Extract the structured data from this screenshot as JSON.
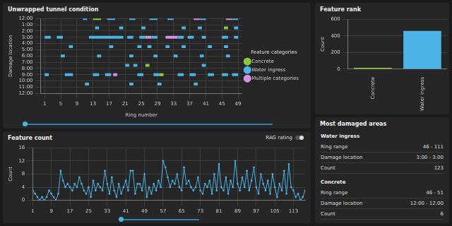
{
  "chart_data": [
    {
      "type": "scatter",
      "title": "Unwrapped tunnel condition",
      "x_label": "Ring number",
      "y_label": "Damage location",
      "legend_title": "Feature categories",
      "legend": "right",
      "grid": true,
      "xlim": [
        0,
        50
      ],
      "xticks": [
        1,
        5,
        9,
        13,
        17,
        21,
        25,
        29,
        33,
        37,
        41,
        45,
        49
      ],
      "ylim": [
        0,
        12
      ],
      "yticks": [
        {
          "value": 0,
          "label": "12:00"
        },
        {
          "value": 1,
          "label": "1:00"
        },
        {
          "value": 2,
          "label": "2:00"
        },
        {
          "value": 3,
          "label": "3:00"
        },
        {
          "value": 4,
          "label": "4:00"
        },
        {
          "value": 5,
          "label": "5:00"
        },
        {
          "value": 6,
          "label": "6:00"
        },
        {
          "value": 7,
          "label": "7:00"
        },
        {
          "value": 8,
          "label": "8:00"
        },
        {
          "value": 9,
          "label": "9:00"
        },
        {
          "value": 10,
          "label": "10:00"
        },
        {
          "value": 11,
          "label": "11:00"
        },
        {
          "value": 12,
          "label": "12:00"
        }
      ],
      "series": [
        {
          "name": "Concrete",
          "color": "#8dc63f",
          "segments": [
            {
              "x": [
                13,
                15
              ],
              "y": 0
            },
            {
              "x": [
                45.5,
                46.5
              ],
              "y": 1.5
            },
            {
              "x": [
                26,
                27
              ],
              "y": 7.5
            },
            {
              "x": [
                29.5,
                30.5
              ],
              "y": 9
            }
          ]
        },
        {
          "name": "Water ingress",
          "color": "#4cb3e6",
          "segments": [
            {
              "x": [
                10.5,
                11.5
              ],
              "y": 0
            },
            {
              "x": [
                16.5,
                18.5
              ],
              "y": 0
            },
            {
              "x": [
                22,
                23.5
              ],
              "y": 0
            },
            {
              "x": [
                27,
                29
              ],
              "y": 0
            },
            {
              "x": [
                31.5,
                33
              ],
              "y": 0
            },
            {
              "x": [
                39.5,
                41
              ],
              "y": 0
            },
            {
              "x": [
                47.5,
                49
              ],
              "y": 0
            },
            {
              "x": [
                13.5,
                14.5
              ],
              "y": 1.5
            },
            {
              "x": [
                19.5,
                20.5
              ],
              "y": 1.5
            },
            {
              "x": [
                25,
                26
              ],
              "y": 1.5
            },
            {
              "x": [
                35,
                36
              ],
              "y": 1.5
            },
            {
              "x": [
                39,
                40
              ],
              "y": 1.5
            },
            {
              "x": [
                48,
                49
              ],
              "y": 1.5
            },
            {
              "x": [
                1,
                2.5
              ],
              "y": 3
            },
            {
              "x": [
                4,
                5.5
              ],
              "y": 3
            },
            {
              "x": [
                12,
                20.5
              ],
              "y": 3
            },
            {
              "x": [
                21.5,
                23
              ],
              "y": 3
            },
            {
              "x": [
                24.5,
                26
              ],
              "y": 3
            },
            {
              "x": [
                27.5,
                29
              ],
              "y": 3
            },
            {
              "x": [
                34,
                35.5
              ],
              "y": 3
            },
            {
              "x": [
                36.5,
                38
              ],
              "y": 3
            },
            {
              "x": [
                40,
                41
              ],
              "y": 3
            },
            {
              "x": [
                45,
                46.5
              ],
              "y": 3
            },
            {
              "x": [
                48,
                49
              ],
              "y": 3
            },
            {
              "x": [
                7,
                8
              ],
              "y": 4.5
            },
            {
              "x": [
                17,
                18
              ],
              "y": 4.5
            },
            {
              "x": [
                24,
                25
              ],
              "y": 4.5
            },
            {
              "x": [
                26.5,
                27.5
              ],
              "y": 4.5
            },
            {
              "x": [
                31,
                32
              ],
              "y": 4.5
            },
            {
              "x": [
                35,
                36
              ],
              "y": 4.5
            },
            {
              "x": [
                41.5,
                42.5
              ],
              "y": 4.5
            },
            {
              "x": [
                45.5,
                46.5
              ],
              "y": 4.5
            },
            {
              "x": [
                5,
                6
              ],
              "y": 6
            },
            {
              "x": [
                14,
                15
              ],
              "y": 6
            },
            {
              "x": [
                22,
                23
              ],
              "y": 6
            },
            {
              "x": [
                28,
                29
              ],
              "y": 6
            },
            {
              "x": [
                33,
                34
              ],
              "y": 6
            },
            {
              "x": [
                39.5,
                40.5
              ],
              "y": 6
            },
            {
              "x": [
                46,
                47
              ],
              "y": 6
            },
            {
              "x": [
                21,
                22
              ],
              "y": 7.5
            },
            {
              "x": [
                23,
                24
              ],
              "y": 7.5
            },
            {
              "x": [
                40,
                41
              ],
              "y": 7.5
            },
            {
              "x": [
                1,
                2
              ],
              "y": 9
            },
            {
              "x": [
                6,
                8
              ],
              "y": 9
            },
            {
              "x": [
                13,
                14.5
              ],
              "y": 9
            },
            {
              "x": [
                16,
                17.5
              ],
              "y": 9
            },
            {
              "x": [
                24,
                25.5
              ],
              "y": 9
            },
            {
              "x": [
                28,
                29.5
              ],
              "y": 9
            },
            {
              "x": [
                34,
                35.5
              ],
              "y": 9
            },
            {
              "x": [
                37,
                38.5
              ],
              "y": 9
            },
            {
              "x": [
                41.5,
                43
              ],
              "y": 9
            },
            {
              "x": [
                45,
                46.5
              ],
              "y": 9
            },
            {
              "x": [
                47.5,
                49
              ],
              "y": 9
            },
            {
              "x": [
                11,
                12
              ],
              "y": 10.5
            },
            {
              "x": [
                22,
                23
              ],
              "y": 10.5
            },
            {
              "x": [
                29,
                30
              ],
              "y": 10.5
            },
            {
              "x": [
                38,
                39
              ],
              "y": 10.5
            }
          ]
        },
        {
          "name": "Multiple categories",
          "color": "#d88fe6",
          "segments": [
            {
              "x": [
                38,
                39.5
              ],
              "y": 0
            },
            {
              "x": [
                46,
                47.5
              ],
              "y": 0
            },
            {
              "x": [
                26,
                27.5
              ],
              "y": 3
            },
            {
              "x": [
                31,
                34
              ],
              "y": 3
            },
            {
              "x": [
                18,
                19
              ],
              "y": 9
            }
          ]
        }
      ]
    },
    {
      "type": "bar",
      "title": "Feature rank",
      "y_label": "Count",
      "grid": true,
      "categories": [
        "Concrete",
        "Water ingress"
      ],
      "values": [
        17,
        460
      ],
      "colors": [
        "#8dc63f",
        "#4cb3e6"
      ],
      "ylim": [
        0,
        600
      ],
      "yticks": [
        0,
        200,
        400,
        600
      ]
    },
    {
      "type": "line",
      "title": "Feature count",
      "toggle_label": "RAG rating",
      "y_label": "Count",
      "grid": true,
      "color": "#4cb3e6",
      "x": [
        1,
        2,
        3,
        4,
        5,
        6,
        7,
        8,
        9,
        10,
        11,
        12,
        13,
        14,
        15,
        16,
        17,
        18,
        19,
        20,
        21,
        22,
        23,
        24,
        25,
        26,
        27,
        28,
        29,
        30,
        31,
        32,
        33,
        34,
        35,
        36,
        37,
        38,
        39,
        40,
        41,
        42,
        43,
        44,
        45,
        46,
        47,
        48,
        49,
        50,
        51,
        52,
        53,
        54,
        55,
        56,
        57,
        58,
        59,
        60,
        61,
        62,
        63,
        64,
        65,
        66,
        67,
        68,
        69,
        70,
        71,
        72,
        73,
        74,
        75,
        76,
        77,
        78,
        79,
        80,
        81,
        82,
        83,
        84,
        85,
        86,
        87,
        88,
        89,
        90,
        91,
        92,
        93,
        94,
        95,
        96,
        97,
        98,
        99,
        100,
        101,
        102,
        103,
        104,
        105,
        106,
        107,
        108,
        109,
        110,
        111,
        112,
        113,
        114,
        115,
        116,
        117,
        118
      ],
      "values": [
        3,
        2,
        1,
        0,
        1,
        0,
        1,
        3,
        2,
        1,
        0,
        2,
        9,
        6,
        4,
        5,
        4,
        3,
        5,
        4,
        7,
        5,
        3,
        2,
        4,
        1,
        6,
        3,
        5,
        4,
        3,
        9,
        5,
        2,
        7,
        3,
        1,
        5,
        2,
        4,
        6,
        3,
        9,
        9,
        2,
        5,
        5,
        3,
        8,
        1,
        4,
        2,
        5,
        3,
        6,
        4,
        12,
        10,
        7,
        4,
        6,
        5,
        8,
        4,
        3,
        10,
        5,
        6,
        4,
        3,
        4,
        7,
        3,
        2,
        5,
        4,
        6,
        2,
        8,
        3,
        11,
        4,
        3,
        7,
        2,
        6,
        4,
        12,
        5,
        3,
        7,
        4,
        9,
        3,
        6,
        10,
        4,
        2,
        8,
        5,
        3,
        6,
        2,
        8,
        4,
        1,
        5,
        3,
        9,
        2,
        11,
        4,
        3,
        1,
        2,
        0,
        1,
        3
      ],
      "xlim": [
        1,
        118
      ],
      "xticks": [
        1,
        9,
        17,
        25,
        33,
        41,
        49,
        57,
        65,
        73,
        81,
        89,
        97,
        105,
        113
      ],
      "ylim": [
        0,
        16
      ],
      "yticks": [
        0,
        4,
        8,
        12,
        16
      ]
    }
  ],
  "most_damaged_areas": {
    "title": "Most damaged areas",
    "sections": [
      {
        "heading": "Water ingress",
        "rows": [
          {
            "label": "Ring range",
            "value": "46 - 111"
          },
          {
            "label": "Damage location",
            "value": "3:00 - 3:00"
          },
          {
            "label": "Count",
            "value": 123
          }
        ]
      },
      {
        "heading": "Concrete",
        "rows": [
          {
            "label": "Ring range",
            "value": "46 - 51"
          },
          {
            "label": "Damage location",
            "value": "12:00 - 12:00"
          },
          {
            "label": "Count",
            "value": 6
          }
        ]
      }
    ]
  }
}
